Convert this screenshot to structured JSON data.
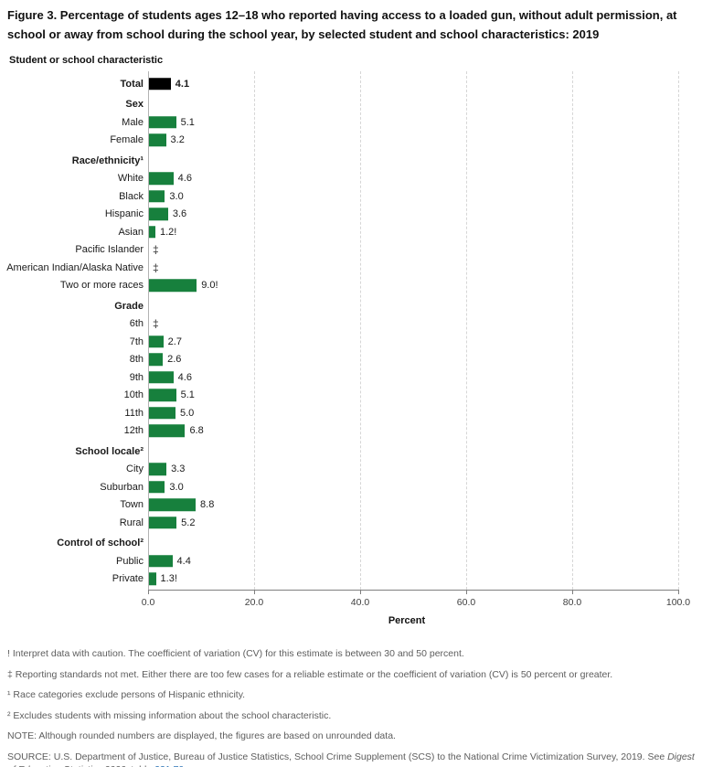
{
  "chart_data": {
    "type": "bar",
    "orientation": "horizontal",
    "title": "Figure 3. Percentage of students ages 12–18 who reported having access to a loaded gun, without adult permission, at school or away from school during the school year, by selected student and school characteristics: 2019",
    "column_header": "Student or school characteristic",
    "xlabel": "Percent",
    "xlim": [
      0,
      100
    ],
    "xticks": [
      0,
      20,
      40,
      60,
      80,
      100
    ],
    "xtick_labels": [
      "0.0",
      "20.0",
      "40.0",
      "60.0",
      "80.0",
      "100.0"
    ],
    "grid": "vertical-dashed",
    "legend": "none",
    "colors": {
      "bar_default": "#17803d",
      "bar_total": "#000000",
      "gridline": "#d6d6d6",
      "axis_line": "#7f7f7f",
      "baseline": "#b3b3b3",
      "link": "#2e75b6"
    },
    "rows": [
      {
        "kind": "bar",
        "label": "Total",
        "value": 4.1,
        "value_label": "4.1",
        "emphasis": true,
        "color": "#000000"
      },
      {
        "kind": "header",
        "label": "Sex"
      },
      {
        "kind": "bar",
        "label": "Male",
        "value": 5.1,
        "value_label": "5.1"
      },
      {
        "kind": "bar",
        "label": "Female",
        "value": 3.2,
        "value_label": "3.2"
      },
      {
        "kind": "header",
        "label": "Race/ethnicity¹"
      },
      {
        "kind": "bar",
        "label": "White",
        "value": 4.6,
        "value_label": "4.6"
      },
      {
        "kind": "bar",
        "label": "Black",
        "value": 3.0,
        "value_label": "3.0"
      },
      {
        "kind": "bar",
        "label": "Hispanic",
        "value": 3.6,
        "value_label": "3.6"
      },
      {
        "kind": "bar",
        "label": "Asian",
        "value": 1.2,
        "value_label": "1.2!"
      },
      {
        "kind": "suppressed",
        "label": "Pacific Islander",
        "value_label": "‡"
      },
      {
        "kind": "suppressed",
        "label": "American Indian/Alaska Native",
        "value_label": "‡"
      },
      {
        "kind": "bar",
        "label": "Two or more races",
        "value": 9.0,
        "value_label": "9.0!"
      },
      {
        "kind": "header",
        "label": "Grade"
      },
      {
        "kind": "suppressed",
        "label": "6th",
        "value_label": "‡"
      },
      {
        "kind": "bar",
        "label": "7th",
        "value": 2.7,
        "value_label": "2.7"
      },
      {
        "kind": "bar",
        "label": "8th",
        "value": 2.6,
        "value_label": "2.6"
      },
      {
        "kind": "bar",
        "label": "9th",
        "value": 4.6,
        "value_label": "4.6"
      },
      {
        "kind": "bar",
        "label": "10th",
        "value": 5.1,
        "value_label": "5.1"
      },
      {
        "kind": "bar",
        "label": "11th",
        "value": 5.0,
        "value_label": "5.0"
      },
      {
        "kind": "bar",
        "label": "12th",
        "value": 6.8,
        "value_label": "6.8"
      },
      {
        "kind": "header",
        "label": "School locale²"
      },
      {
        "kind": "bar",
        "label": "City",
        "value": 3.3,
        "value_label": "3.3"
      },
      {
        "kind": "bar",
        "label": "Suburban",
        "value": 3.0,
        "value_label": "3.0"
      },
      {
        "kind": "bar",
        "label": "Town",
        "value": 8.8,
        "value_label": "8.8"
      },
      {
        "kind": "bar",
        "label": "Rural",
        "value": 5.2,
        "value_label": "5.2"
      },
      {
        "kind": "header",
        "label": "Control of school²"
      },
      {
        "kind": "bar",
        "label": "Public",
        "value": 4.4,
        "value_label": "4.4"
      },
      {
        "kind": "bar",
        "label": "Private",
        "value": 1.3,
        "value_label": "1.3!"
      }
    ]
  },
  "footnotes": [
    "! Interpret data with caution. The coefficient of variation (CV) for this estimate is between 30 and 50 percent.",
    "‡ Reporting standards not met. Either there are too few cases for a reliable estimate or the coefficient of variation (CV) is 50 percent or greater.",
    "¹ Race categories exclude persons of Hispanic ethnicity.",
    "² Excludes students with missing information about the school characteristic.",
    "NOTE: Although rounded numbers are displayed, the figures are based on unrounded data."
  ],
  "source": {
    "segments": [
      {
        "text": "SOURCE: U.S. Department of Justice, Bureau of Justice Statistics, School Crime Supplement (SCS) to the National Crime Victimization Survey, 2019. See ",
        "style": "normal"
      },
      {
        "text": "Digest of Education Statistics 2020",
        "style": "italic"
      },
      {
        "text": ", table ",
        "style": "normal"
      },
      {
        "text": "231.70.",
        "style": "link"
      }
    ]
  }
}
